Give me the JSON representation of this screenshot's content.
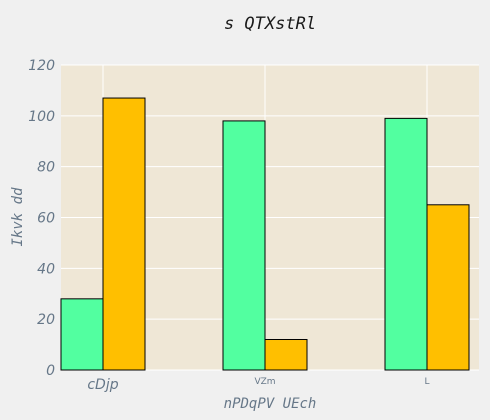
{
  "chart_data": {
    "type": "bar",
    "title": "s QTXstRl",
    "xlabel": "nPDqPV UEch",
    "ylabel": "Ikvk dd",
    "categories": [
      "cDjp",
      "VZm",
      "L"
    ],
    "series": [
      {
        "values": [
          28,
          98,
          99
        ]
      },
      {
        "values": [
          107,
          12,
          65
        ]
      }
    ],
    "ylim": [
      0,
      120
    ],
    "yticks": [
      0,
      20,
      40,
      60,
      80,
      100,
      120
    ],
    "grid": true,
    "colors": {
      "series": [
        "#52ffa0",
        "#ffbf00"
      ],
      "plot_background": "#efe7d6",
      "page_background": "#f0f0f0",
      "grid": "#ffffff",
      "bar_edge": "#000000"
    }
  }
}
